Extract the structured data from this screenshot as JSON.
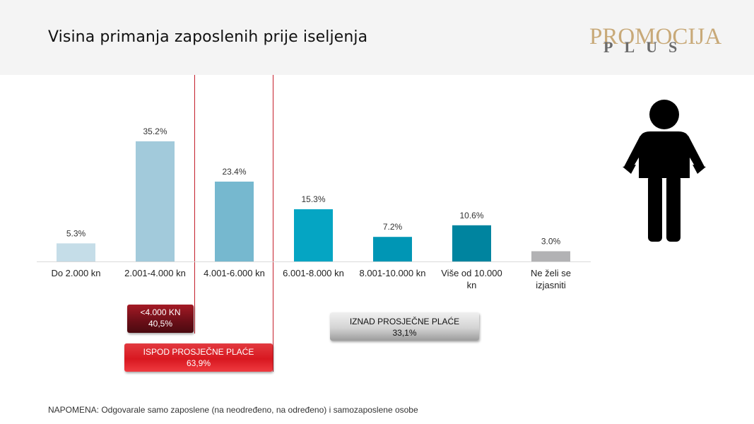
{
  "header": {
    "title": "Visina primanja zaposlenih prije iseljenja",
    "logo_main": "PROMOCIJA",
    "logo_sub": "PLUS"
  },
  "colors": {
    "header_bg": "#f4f4f4",
    "marker_line": "#c41e2a",
    "logo_gold": "#c8a978"
  },
  "chart_data": {
    "type": "bar",
    "title": "",
    "xlabel": "",
    "ylabel": "",
    "ylim": [
      0,
      40
    ],
    "grid": false,
    "categories": [
      "Do 2.000 kn",
      "2.001-4.000 kn",
      "4.001-6.000 kn",
      "6.001-8.000 kn",
      "8.001-10.000 kn",
      "Više od 10.000 kn",
      "Ne želi se izjasniti"
    ],
    "category_lines": [
      [
        "Do 2.000 kn"
      ],
      [
        "2.001-4.000 kn"
      ],
      [
        "4.001-6.000 kn"
      ],
      [
        "6.001-8.000 kn"
      ],
      [
        "8.001-10.000 kn"
      ],
      [
        "Više od 10.000",
        "kn"
      ],
      [
        "Ne želi se",
        "izjasniti"
      ]
    ],
    "values": [
      5.3,
      35.2,
      23.4,
      15.3,
      7.2,
      10.6,
      3.0
    ],
    "value_labels": [
      "5.3%",
      "35.2%",
      "23.4%",
      "15.3%",
      "7.2%",
      "10.6%",
      "3.0%"
    ],
    "bar_colors": [
      "#c5dde8",
      "#a2cadb",
      "#76b8cf",
      "#05a5c3",
      "#0096b5",
      "#00849f",
      "#b2b2b4"
    ]
  },
  "callouts": {
    "below_4000_line1": "<4.000 KN",
    "below_4000_line2": "40,5%",
    "below_avg_line1": "ISPOD PROSJEČNE PLAĆE",
    "below_avg_line2": "63,9%",
    "above_avg_line1": "IZNAD PROSJEČNE PLAĆE",
    "above_avg_line2": "33,1%"
  },
  "note": "NAPOMENA: Odgovarale samo zaposlene (na neodređeno, na određeno) i samozaposlene osobe",
  "icons": {
    "figure": "person-empty-pockets-icon"
  }
}
